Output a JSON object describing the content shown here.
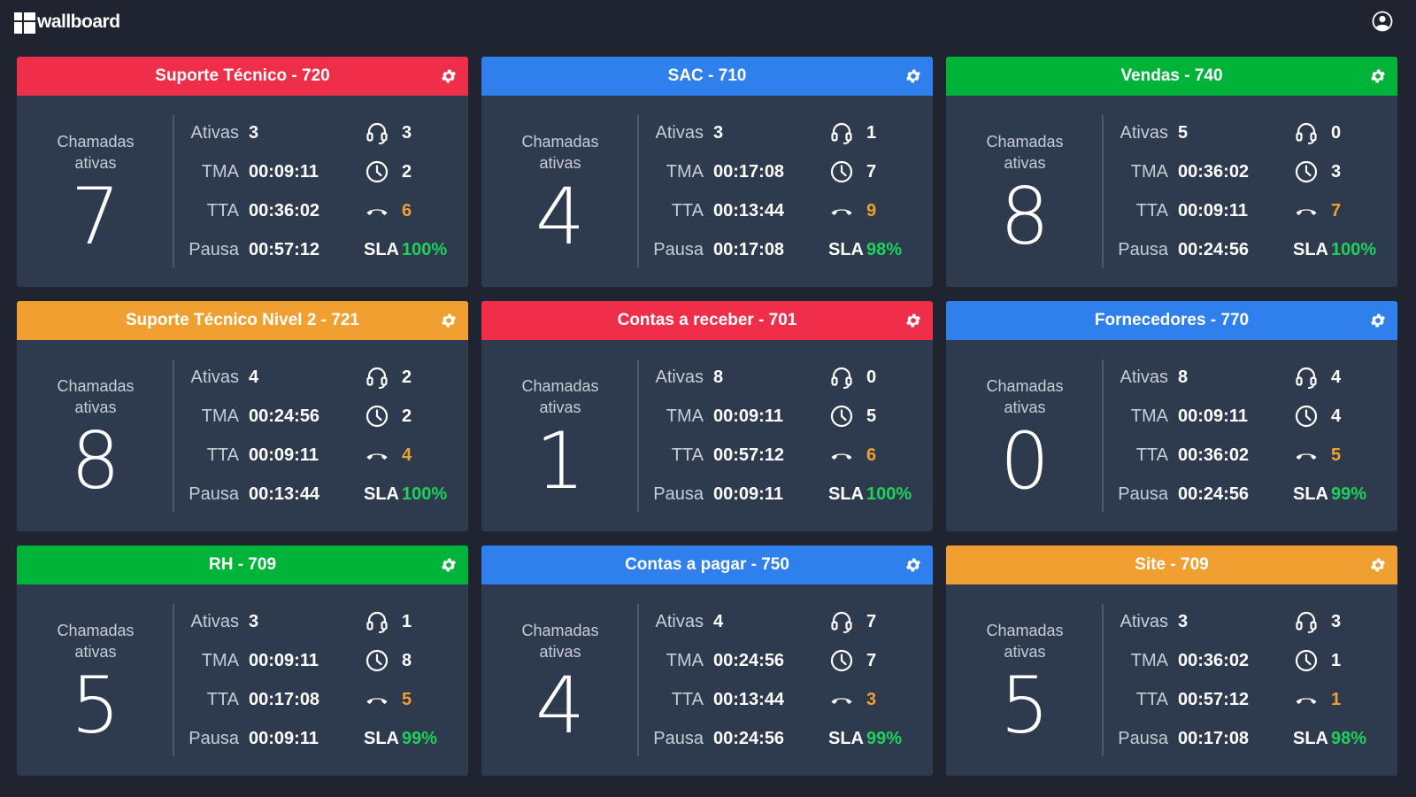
{
  "app": {
    "title": "wallboard"
  },
  "labels": {
    "chamadas_line1": "Chamadas",
    "chamadas_line2": "ativas",
    "ativas": "Ativas",
    "tma": "TMA",
    "tta": "TTA",
    "pausa": "Pausa",
    "sla": "SLA"
  },
  "colors": {
    "red": "#ef2e4a",
    "blue": "#2f80ed",
    "green": "#00b43a",
    "orange": "#f0a030",
    "sla_green": "#1fd15a",
    "card_bg": "#2e3a4e",
    "page_bg": "#1f2430"
  },
  "icons": [
    "headset-icon",
    "clock-icon",
    "phone-hangup-icon",
    "gear-icon",
    "user-icon"
  ],
  "queues": [
    {
      "title": "Suporte Técnico - 720",
      "color": "red",
      "active_calls": "7",
      "ativas": "3",
      "tma": "00:09:11",
      "tta": "00:36:02",
      "pausa": "00:57:12",
      "agents": "3",
      "waiting": "2",
      "abandoned": "6",
      "sla": "100%"
    },
    {
      "title": "SAC - 710",
      "color": "blue",
      "active_calls": "4",
      "ativas": "3",
      "tma": "00:17:08",
      "tta": "00:13:44",
      "pausa": "00:17:08",
      "agents": "1",
      "waiting": "7",
      "abandoned": "9",
      "sla": "98%"
    },
    {
      "title": "Vendas - 740",
      "color": "green",
      "active_calls": "8",
      "ativas": "5",
      "tma": "00:36:02",
      "tta": "00:09:11",
      "pausa": "00:24:56",
      "agents": "0",
      "waiting": "3",
      "abandoned": "7",
      "sla": "100%"
    },
    {
      "title": "Suporte Técnico Nivel 2 - 721",
      "color": "orange",
      "active_calls": "8",
      "ativas": "4",
      "tma": "00:24:56",
      "tta": "00:09:11",
      "pausa": "00:13:44",
      "agents": "2",
      "waiting": "2",
      "abandoned": "4",
      "sla": "100%"
    },
    {
      "title": "Contas a receber - 701",
      "color": "red",
      "active_calls": "1",
      "ativas": "8",
      "tma": "00:09:11",
      "tta": "00:57:12",
      "pausa": "00:09:11",
      "agents": "0",
      "waiting": "5",
      "abandoned": "6",
      "sla": "100%"
    },
    {
      "title": "Fornecedores - 770",
      "color": "blue",
      "active_calls": "0",
      "ativas": "8",
      "tma": "00:09:11",
      "tta": "00:36:02",
      "pausa": "00:24:56",
      "agents": "4",
      "waiting": "4",
      "abandoned": "5",
      "sla": "99%"
    },
    {
      "title": "RH - 709",
      "color": "green",
      "active_calls": "5",
      "ativas": "3",
      "tma": "00:09:11",
      "tta": "00:17:08",
      "pausa": "00:09:11",
      "agents": "1",
      "waiting": "8",
      "abandoned": "5",
      "sla": "99%"
    },
    {
      "title": "Contas a pagar - 750",
      "color": "blue",
      "active_calls": "4",
      "ativas": "4",
      "tma": "00:24:56",
      "tta": "00:13:44",
      "pausa": "00:24:56",
      "agents": "7",
      "waiting": "7",
      "abandoned": "3",
      "sla": "99%"
    },
    {
      "title": "Site - 709",
      "color": "orange",
      "active_calls": "5",
      "ativas": "3",
      "tma": "00:36:02",
      "tta": "00:57:12",
      "pausa": "00:17:08",
      "agents": "3",
      "waiting": "1",
      "abandoned": "1",
      "sla": "98%"
    }
  ]
}
